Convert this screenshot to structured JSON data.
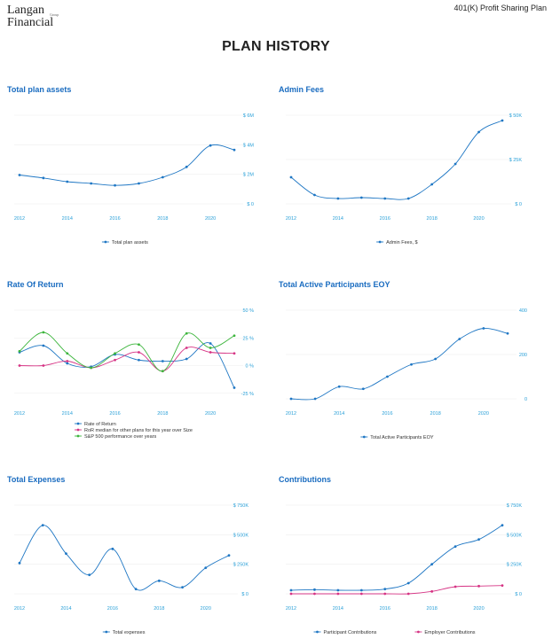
{
  "header": {
    "logo_line1": "Langan",
    "logo_line2": "Financial",
    "logo_small": "Group",
    "plan_name": "401(K) Profit Sharing Plan",
    "page_title": "PLAN HISTORY"
  },
  "colors": {
    "blue": "#1f77c4",
    "magenta": "#d63384",
    "green": "#3cb53c",
    "grid": "#eeeeee",
    "title": "#1a6cc0"
  },
  "chart_data": [
    {
      "id": "total-plan-assets",
      "type": "line",
      "title": "Total plan assets",
      "x": [
        2012,
        2013,
        2014,
        2015,
        2016,
        2017,
        2018,
        2019,
        2020,
        2021
      ],
      "xticks": [
        "2012",
        "2014",
        "2016",
        "2018",
        "2020"
      ],
      "yticks": [
        {
          "v": 0,
          "label": "$ 0"
        },
        {
          "v": 2,
          "label": "$ 2M"
        },
        {
          "v": 4,
          "label": "$ 4M"
        },
        {
          "v": 6,
          "label": "$ 6M"
        }
      ],
      "ylim": [
        0,
        6
      ],
      "series": [
        {
          "name": "Total plan assets",
          "color": "#1f77c4",
          "values": [
            1.95,
            1.75,
            1.5,
            1.38,
            1.25,
            1.38,
            1.8,
            2.5,
            3.95,
            3.65
          ]
        }
      ]
    },
    {
      "id": "admin-fees",
      "type": "line",
      "title": "Admin Fees",
      "x": [
        2012,
        2013,
        2014,
        2015,
        2016,
        2017,
        2018,
        2019,
        2020,
        2021
      ],
      "xticks": [
        "2012",
        "2014",
        "2016",
        "2018",
        "2020"
      ],
      "yticks": [
        {
          "v": 0,
          "label": "$ 0"
        },
        {
          "v": 25,
          "label": "$ 25K"
        },
        {
          "v": 50,
          "label": "$ 50K"
        }
      ],
      "ylim": [
        0,
        50
      ],
      "series": [
        {
          "name": "Admin Fees, $",
          "color": "#1f77c4",
          "values": [
            15,
            5,
            3,
            3.5,
            3,
            3,
            11,
            22.5,
            40.5,
            47
          ]
        }
      ]
    },
    {
      "id": "rate-of-return",
      "type": "line",
      "title": "Rate Of Return",
      "x": [
        2012,
        2013,
        2014,
        2015,
        2016,
        2017,
        2018,
        2019,
        2020,
        2021
      ],
      "xticks": [
        "2012",
        "2014",
        "2016",
        "2018",
        "2020"
      ],
      "yticks": [
        {
          "v": -25,
          "label": "-25 %"
        },
        {
          "v": 0,
          "label": "0 %"
        },
        {
          "v": 25,
          "label": "25 %"
        },
        {
          "v": 50,
          "label": "50 %"
        }
      ],
      "ylim": [
        -30,
        50
      ],
      "series": [
        {
          "name": "Rate of Return",
          "color": "#1f77c4",
          "values": [
            12,
            18,
            2,
            -1,
            10,
            5,
            4,
            6,
            20,
            -20
          ]
        },
        {
          "name": "RoR median for other plans for this year over Size",
          "color": "#d63384",
          "values": [
            0,
            0,
            4,
            -2,
            5,
            12,
            -5,
            16,
            12,
            11
          ]
        },
        {
          "name": "S&P 500 performance over years",
          "color": "#3cb53c",
          "values": [
            13,
            30,
            11,
            -2,
            11,
            19,
            -5,
            29,
            16,
            27
          ]
        }
      ]
    },
    {
      "id": "total-active-participants",
      "type": "line",
      "title": "Total Active Participants EOY",
      "x": [
        2012,
        2013,
        2014,
        2015,
        2016,
        2017,
        2018,
        2019,
        2020,
        2021
      ],
      "xticks": [
        "2012",
        "2014",
        "2016",
        "2018",
        "2020"
      ],
      "yticks": [
        {
          "v": 0,
          "label": "0"
        },
        {
          "v": 200,
          "label": "200"
        },
        {
          "v": 400,
          "label": "400"
        }
      ],
      "ylim": [
        0,
        400
      ],
      "series": [
        {
          "name": "Total Active Participants EOY",
          "color": "#1f77c4",
          "values": [
            0,
            0,
            55,
            45,
            100,
            155,
            180,
            270,
            318,
            295
          ]
        }
      ]
    },
    {
      "id": "total-expenses",
      "type": "line",
      "title": "Total Expenses",
      "x": [
        2012,
        2013,
        2014,
        2015,
        2016,
        2017,
        2018,
        2019,
        2020,
        2021
      ],
      "xticks": [
        "2012",
        "2014",
        "2016",
        "2018",
        "2020"
      ],
      "yticks": [
        {
          "v": 0,
          "label": "$ 0"
        },
        {
          "v": 250,
          "label": "$ 250K"
        },
        {
          "v": 500,
          "label": "$ 500K"
        },
        {
          "v": 750,
          "label": "$ 750K"
        }
      ],
      "ylim": [
        0,
        750
      ],
      "series": [
        {
          "name": "Total expenses",
          "color": "#1f77c4",
          "values": [
            260,
            580,
            340,
            160,
            380,
            40,
            110,
            55,
            220,
            325
          ]
        }
      ]
    },
    {
      "id": "contributions",
      "type": "line",
      "title": "Contributions",
      "x": [
        2012,
        2013,
        2014,
        2015,
        2016,
        2017,
        2018,
        2019,
        2020,
        2021
      ],
      "xticks": [
        "2012",
        "2014",
        "2016",
        "2018",
        "2020"
      ],
      "yticks": [
        {
          "v": 0,
          "label": "$ 0"
        },
        {
          "v": 250,
          "label": "$ 250K"
        },
        {
          "v": 500,
          "label": "$ 500K"
        },
        {
          "v": 750,
          "label": "$ 750K"
        }
      ],
      "ylim": [
        0,
        750
      ],
      "series": [
        {
          "name": "Participant Contributions",
          "color": "#1f77c4",
          "values": [
            30,
            35,
            30,
            30,
            40,
            90,
            250,
            400,
            460,
            580
          ]
        },
        {
          "name": "Employer Contributions",
          "color": "#d63384",
          "values": [
            0,
            0,
            0,
            0,
            0,
            0,
            20,
            60,
            65,
            70
          ]
        }
      ]
    }
  ]
}
